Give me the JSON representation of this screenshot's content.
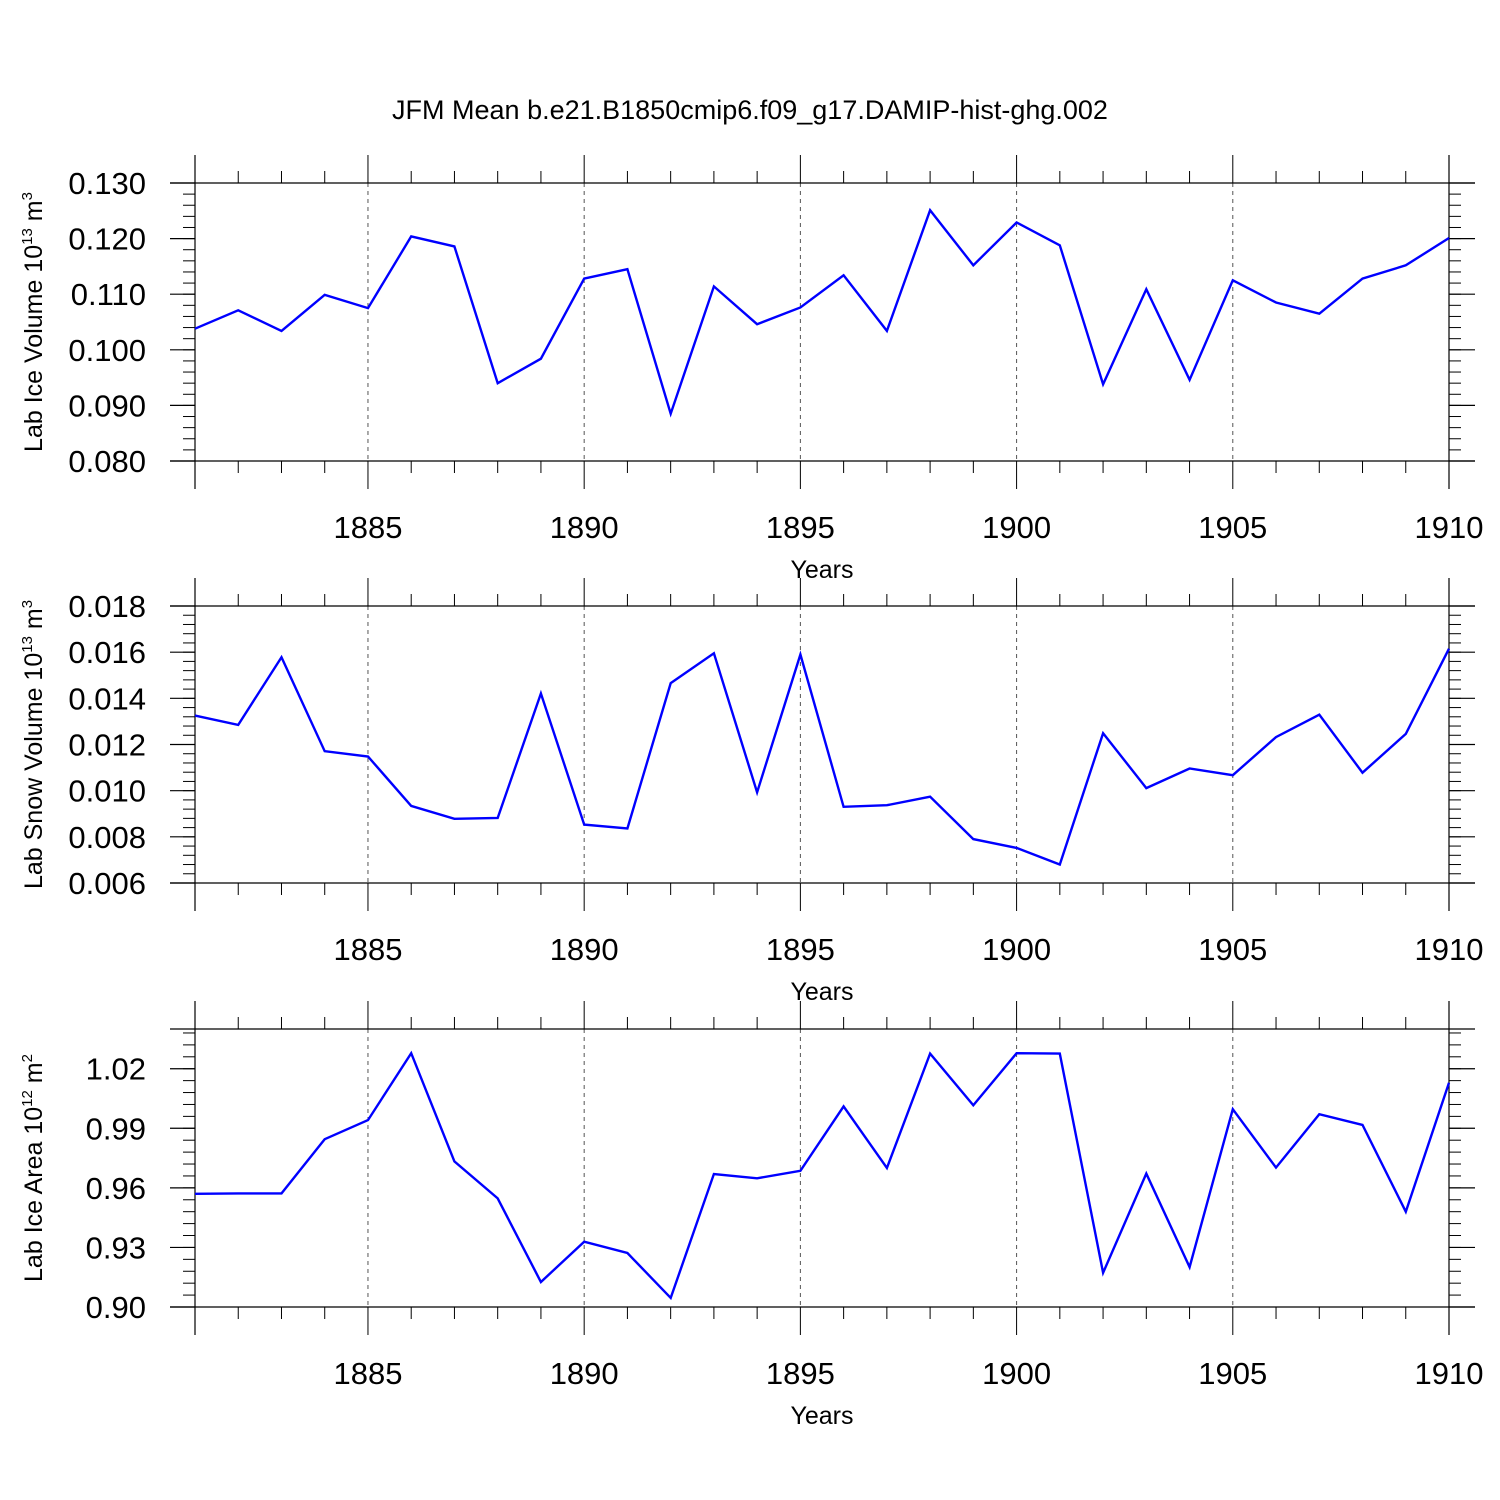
{
  "title": "JFM Mean b.e21.B1850cmip6.f09_g17.DAMIP-hist-ghg.002",
  "chart_data": [
    {
      "type": "line",
      "title": "",
      "xlabel": "Years",
      "ylabel": {
        "base": "Lab Ice Volume 10",
        "exp1": "13",
        "mid": " m",
        "exp2": "3"
      },
      "xlim": [
        1881,
        1910
      ],
      "ylim": [
        0.08,
        0.13
      ],
      "xticks": [
        1885,
        1890,
        1895,
        1900,
        1905,
        1910
      ],
      "xtick_labels": [
        "1885",
        "1890",
        "1895",
        "1900",
        "1905",
        "1910"
      ],
      "yticks": [
        0.08,
        0.09,
        0.1,
        0.11,
        0.12,
        0.13
      ],
      "ytick_labels": [
        "0.080",
        "0.090",
        "0.100",
        "0.110",
        "0.120",
        "0.130"
      ],
      "y_minor_step": 0.002,
      "color": "#0000ff",
      "series": [
        {
          "name": "Lab Ice Volume",
          "x": [
            1881,
            1882,
            1883,
            1884,
            1885,
            1886,
            1887,
            1888,
            1889,
            1890,
            1891,
            1892,
            1893,
            1894,
            1895,
            1896,
            1897,
            1898,
            1899,
            1900,
            1901,
            1902,
            1903,
            1904,
            1905,
            1906,
            1907,
            1908,
            1909,
            1910
          ],
          "values": [
            0.1038,
            0.1071,
            0.1034,
            0.1099,
            0.1075,
            0.1204,
            0.1186,
            0.094,
            0.0984,
            0.1128,
            0.1145,
            0.0885,
            0.1114,
            0.1046,
            0.1076,
            0.1134,
            0.1034,
            0.1251,
            0.1152,
            0.1229,
            0.1188,
            0.0938,
            0.1109,
            0.0946,
            0.1125,
            0.1085,
            0.1065,
            0.1128,
            0.1152,
            0.1201
          ]
        }
      ]
    },
    {
      "type": "line",
      "title": "",
      "xlabel": "Years",
      "ylabel": {
        "base": "Lab Snow Volume 10",
        "exp1": "13",
        "mid": " m",
        "exp2": "3"
      },
      "xlim": [
        1881,
        1910
      ],
      "ylim": [
        0.006,
        0.018
      ],
      "xticks": [
        1885,
        1890,
        1895,
        1900,
        1905,
        1910
      ],
      "xtick_labels": [
        "1885",
        "1890",
        "1895",
        "1900",
        "1905",
        "1910"
      ],
      "yticks": [
        0.006,
        0.008,
        0.01,
        0.012,
        0.014,
        0.016,
        0.018
      ],
      "ytick_labels": [
        "0.006",
        "0.008",
        "0.010",
        "0.012",
        "0.014",
        "0.016",
        "0.018"
      ],
      "y_minor_step": 0.0004,
      "color": "#0000ff",
      "series": [
        {
          "name": "Lab Snow Volume",
          "x": [
            1881,
            1882,
            1883,
            1884,
            1885,
            1886,
            1887,
            1888,
            1889,
            1890,
            1891,
            1892,
            1893,
            1894,
            1895,
            1896,
            1897,
            1898,
            1899,
            1900,
            1901,
            1902,
            1903,
            1904,
            1905,
            1906,
            1907,
            1908,
            1909,
            1910
          ],
          "values": [
            0.01325,
            0.01285,
            0.01578,
            0.01171,
            0.01148,
            0.00934,
            0.00878,
            0.00882,
            0.01421,
            0.00853,
            0.00836,
            0.01466,
            0.01595,
            0.00993,
            0.0159,
            0.0093,
            0.00937,
            0.00974,
            0.0079,
            0.00752,
            0.0068,
            0.01249,
            0.01011,
            0.01096,
            0.01067,
            0.01232,
            0.01329,
            0.01078,
            0.01246,
            0.01615
          ]
        }
      ]
    },
    {
      "type": "line",
      "title": "",
      "xlabel": "Years",
      "ylabel": {
        "base": "Lab Ice Area 10",
        "exp1": "12",
        "mid": " m",
        "exp2": "2"
      },
      "xlim": [
        1881,
        1910
      ],
      "ylim": [
        0.9,
        1.04
      ],
      "xticks": [
        1885,
        1890,
        1895,
        1900,
        1905,
        1910
      ],
      "xtick_labels": [
        "1885",
        "1890",
        "1895",
        "1900",
        "1905",
        "1910"
      ],
      "yticks": [
        0.9,
        0.93,
        0.96,
        0.99,
        1.02
      ],
      "ytick_labels": [
        "0.90",
        "0.93",
        "0.96",
        "0.99",
        "1.02"
      ],
      "y_minor_step": 0.006,
      "color": "#0000ff",
      "series": [
        {
          "name": "Lab Ice Area",
          "x": [
            1881,
            1882,
            1883,
            1884,
            1885,
            1886,
            1887,
            1888,
            1889,
            1890,
            1891,
            1892,
            1893,
            1894,
            1895,
            1896,
            1897,
            1898,
            1899,
            1900,
            1901,
            1902,
            1903,
            1904,
            1905,
            1906,
            1907,
            1908,
            1909,
            1910
          ],
          "values": [
            0.957,
            0.9572,
            0.9572,
            0.9845,
            0.9941,
            1.0278,
            0.9733,
            0.9547,
            0.9126,
            0.9329,
            0.9272,
            0.9046,
            0.967,
            0.9648,
            0.9686,
            1.001,
            0.97,
            1.0276,
            1.0016,
            1.0278,
            1.0276,
            0.9172,
            0.9672,
            0.9201,
            0.9996,
            0.9702,
            0.9971,
            0.9917,
            0.948,
            1.0129
          ]
        }
      ]
    }
  ]
}
